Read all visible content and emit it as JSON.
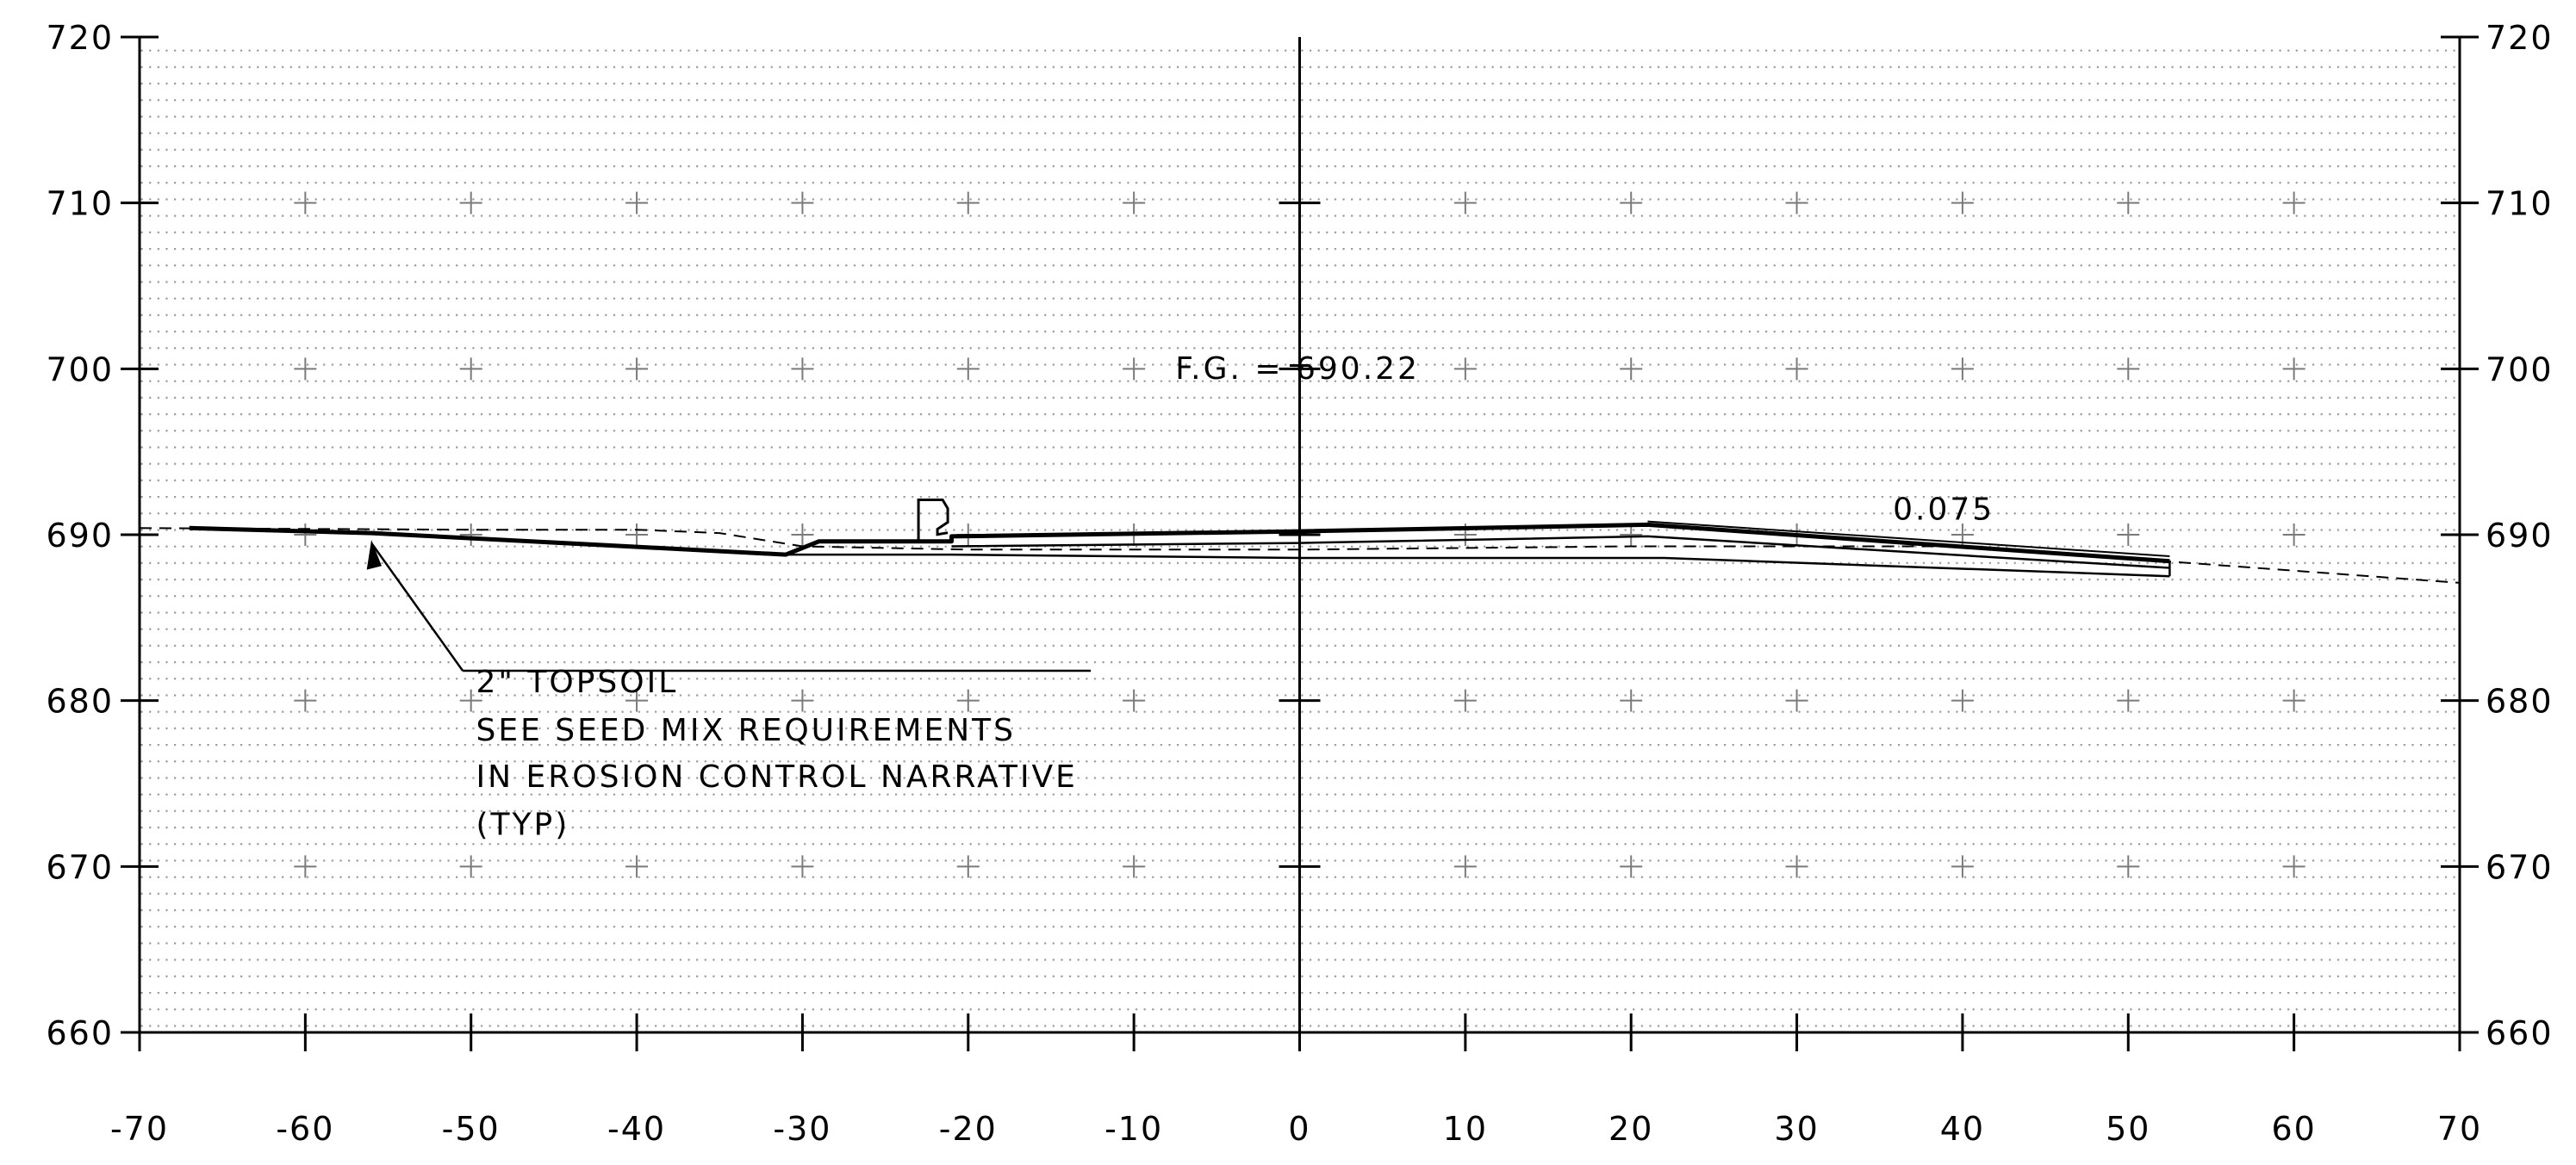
{
  "chart_data": {
    "type": "cross-section",
    "xlim": [
      -70,
      70
    ],
    "ylim": [
      660,
      720
    ],
    "x_ticks": [
      -70,
      -60,
      -50,
      -40,
      -30,
      -20,
      -10,
      0,
      10,
      20,
      30,
      40,
      50,
      60,
      70
    ],
    "x_tick_labels": [
      "-70",
      "-60",
      "-50",
      "-40",
      "-30",
      "-20",
      "-10",
      "0",
      "10",
      "20",
      "30",
      "40",
      "50",
      "60",
      "70"
    ],
    "y_ticks": [
      660,
      670,
      680,
      690,
      700,
      710,
      720
    ],
    "y_tick_labels": [
      "660",
      "670",
      "680",
      "690",
      "700",
      "710",
      "720"
    ],
    "grid": "crosses at major ticks, dotted minor grid",
    "existing_ground": [
      [
        -70,
        690.4
      ],
      [
        -50,
        690.3
      ],
      [
        -40,
        690.3
      ],
      [
        -35,
        690.1
      ],
      [
        -30,
        689.3
      ],
      [
        -20,
        689.1
      ],
      [
        0,
        689.1
      ],
      [
        20,
        689.3
      ],
      [
        40,
        689.3
      ],
      [
        70,
        687.1
      ]
    ],
    "proposed_surface": [
      [
        -67,
        690.4
      ],
      [
        -56,
        690.1
      ],
      [
        -31,
        688.8
      ],
      [
        -29,
        689.6
      ],
      [
        -21,
        689.6
      ],
      [
        -21,
        689.9
      ],
      [
        0,
        690.2
      ],
      [
        21,
        690.6
      ],
      [
        52.5,
        688.4
      ]
    ],
    "pavement_bottom": [
      [
        -21,
        689.3
      ],
      [
        0,
        689.5
      ],
      [
        21,
        689.9
      ],
      [
        52.5,
        688.0
      ]
    ],
    "subbase_bottom": [
      [
        -31,
        688.8
      ],
      [
        -21,
        688.8
      ],
      [
        0,
        688.6
      ],
      [
        22,
        688.6
      ],
      [
        52.5,
        687.5
      ]
    ],
    "curb": {
      "x": -23,
      "top": 692.1,
      "bottom": 689.6
    },
    "annotations": {
      "finished_grade": "F.G. = 690.22",
      "fg_value": 690.22,
      "slope": "0.075",
      "note_lines": [
        "2\" TOPSOIL",
        "SEE SEED MIX REQUIREMENTS",
        "IN EROSION CONTROL NARRATIVE",
        "(TYP)"
      ]
    }
  }
}
